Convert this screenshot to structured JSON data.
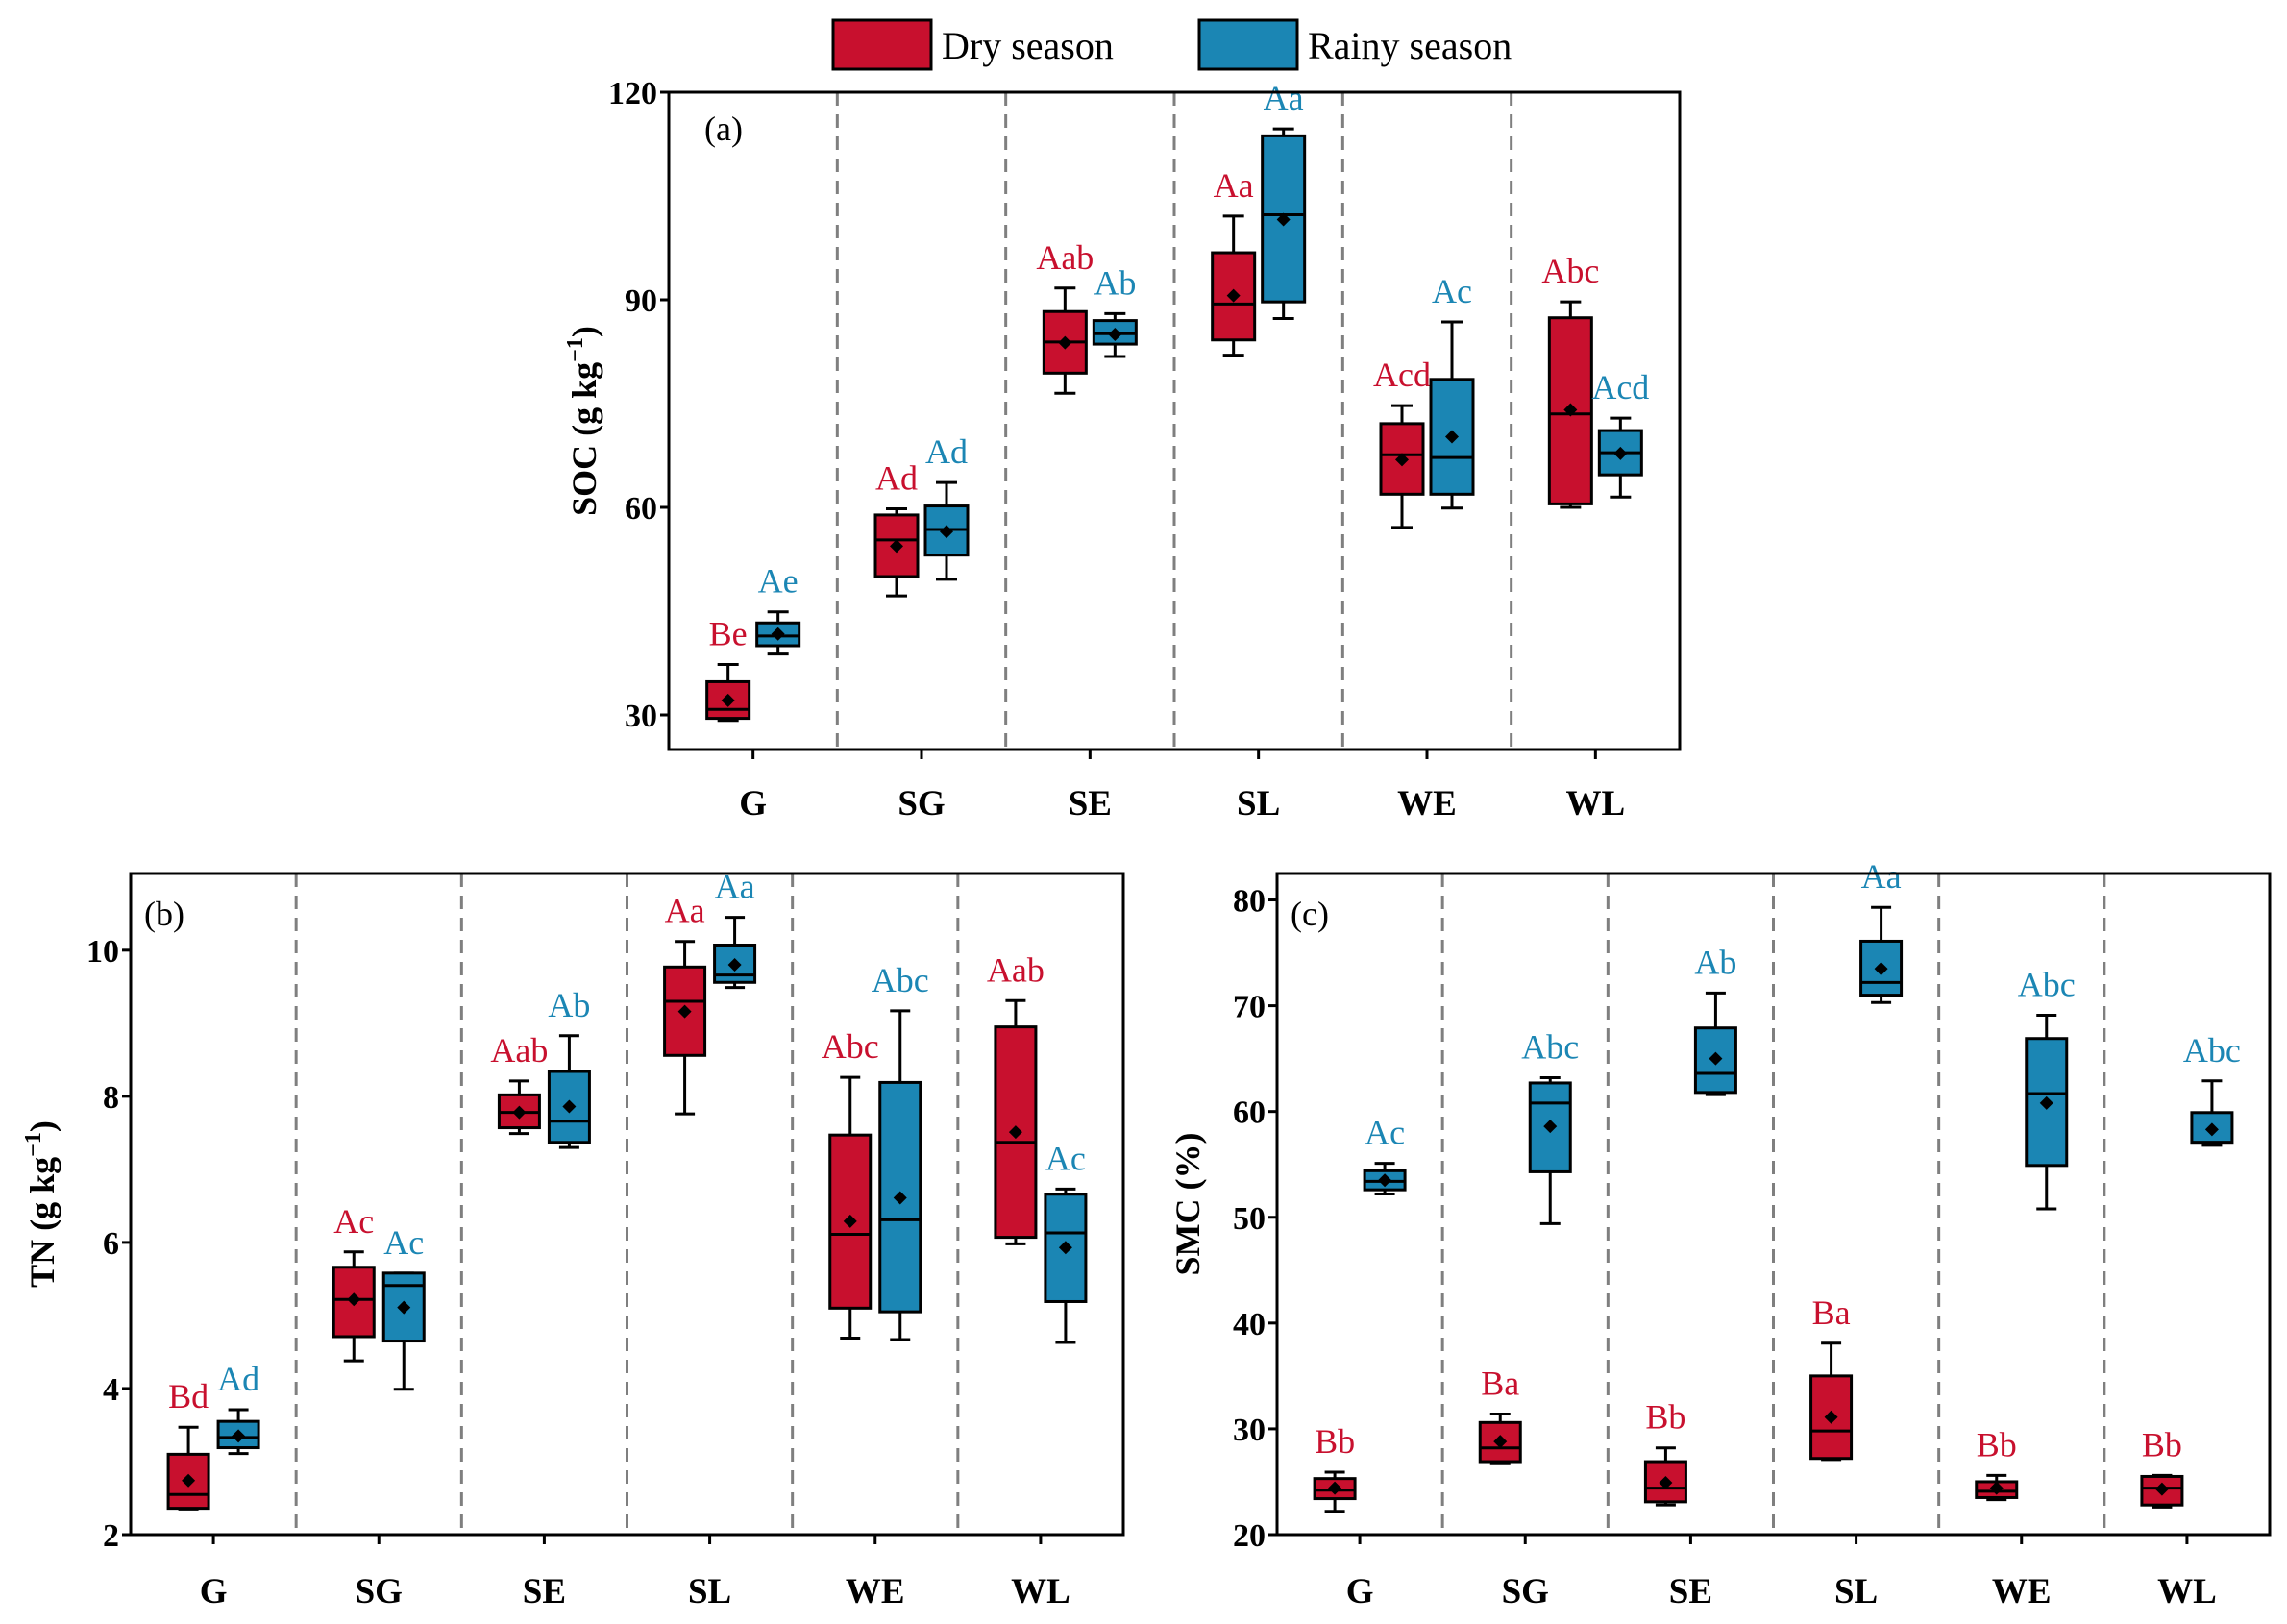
{
  "legend": {
    "dry_label": "Dry season",
    "rainy_label": "Rainy season",
    "dry_color": "#c8102e",
    "rainy_color": "#1b86b4"
  },
  "chart_data": [
    {
      "type": "box",
      "panel": "(a)",
      "ylabel_main": "SOC (g kg",
      "ylabel_sup": "−1",
      "ylabel_close": ")",
      "ylim": [
        25,
        120
      ],
      "yticks": [
        30,
        60,
        90,
        120
      ],
      "categories": [
        "G",
        "SG",
        "SE",
        "SL",
        "WE",
        "WL"
      ],
      "series": [
        {
          "name": "Dry season",
          "boxes": [
            {
              "min": 29.2,
              "q1": 29.5,
              "median": 30.8,
              "q3": 34.8,
              "max": 37.3,
              "mean": 32.1,
              "label": "Be"
            },
            {
              "min": 47.2,
              "q1": 50.0,
              "median": 55.3,
              "q3": 58.9,
              "max": 59.8,
              "mean": 54.4,
              "label": "Ad"
            },
            {
              "min": 76.5,
              "q1": 79.4,
              "median": 83.9,
              "q3": 88.3,
              "max": 91.7,
              "mean": 83.8,
              "label": "Aab"
            },
            {
              "min": 82.0,
              "q1": 84.2,
              "median": 89.4,
              "q3": 96.8,
              "max": 102.1,
              "mean": 90.6,
              "label": "Aa"
            },
            {
              "min": 57.1,
              "q1": 61.9,
              "median": 67.6,
              "q3": 72.1,
              "max": 74.7,
              "mean": 66.9,
              "label": "Acd"
            },
            {
              "min": 60.0,
              "q1": 60.5,
              "median": 73.5,
              "q3": 87.4,
              "max": 89.7,
              "mean": 74.1,
              "label": "Abc"
            }
          ]
        },
        {
          "name": "Rainy season",
          "boxes": [
            {
              "min": 38.8,
              "q1": 40.0,
              "median": 41.4,
              "q3": 43.3,
              "max": 44.9,
              "mean": 41.7,
              "label": "Ae"
            },
            {
              "min": 49.6,
              "q1": 53.1,
              "median": 56.8,
              "q3": 60.2,
              "max": 63.6,
              "mean": 56.5,
              "label": "Ad"
            },
            {
              "min": 81.8,
              "q1": 83.6,
              "median": 85.1,
              "q3": 87.0,
              "max": 88.0,
              "mean": 85.0,
              "label": "Ab"
            },
            {
              "min": 87.3,
              "q1": 89.7,
              "median": 102.3,
              "q3": 113.7,
              "max": 114.7,
              "mean": 101.6,
              "label": "Aa"
            },
            {
              "min": 59.9,
              "q1": 61.9,
              "median": 67.2,
              "q3": 78.5,
              "max": 86.8,
              "mean": 70.2,
              "label": "Ac"
            },
            {
              "min": 61.5,
              "q1": 64.7,
              "median": 67.9,
              "q3": 71.1,
              "max": 72.9,
              "mean": 67.8,
              "label": "Acd"
            }
          ]
        }
      ]
    },
    {
      "type": "box",
      "panel": "(b)",
      "ylabel_main": "TN (g kg",
      "ylabel_sup": "−1",
      "ylabel_close": ")",
      "ylim": [
        2,
        11.05
      ],
      "yticks": [
        2,
        4,
        6,
        8,
        10
      ],
      "categories": [
        "G",
        "SG",
        "SE",
        "SL",
        "WE",
        "WL"
      ],
      "series": [
        {
          "name": "Dry season",
          "boxes": [
            {
              "min": 2.35,
              "q1": 2.36,
              "median": 2.55,
              "q3": 3.1,
              "max": 3.47,
              "mean": 2.74,
              "label": "Bd"
            },
            {
              "min": 4.38,
              "q1": 4.71,
              "median": 5.22,
              "q3": 5.66,
              "max": 5.87,
              "mean": 5.22,
              "label": "Ac"
            },
            {
              "min": 7.49,
              "q1": 7.57,
              "median": 7.78,
              "q3": 8.02,
              "max": 8.21,
              "mean": 7.78,
              "label": "Aab"
            },
            {
              "min": 7.76,
              "q1": 8.56,
              "median": 9.3,
              "q3": 9.77,
              "max": 10.12,
              "mean": 9.16,
              "label": "Aa"
            },
            {
              "min": 4.69,
              "q1": 5.1,
              "median": 6.11,
              "q3": 7.47,
              "max": 8.26,
              "mean": 6.29,
              "label": "Abc"
            },
            {
              "min": 5.98,
              "q1": 6.07,
              "median": 7.37,
              "q3": 8.95,
              "max": 9.31,
              "mean": 7.51,
              "label": "Aab"
            }
          ]
        },
        {
          "name": "Rainy season",
          "boxes": [
            {
              "min": 3.11,
              "q1": 3.19,
              "median": 3.33,
              "q3": 3.55,
              "max": 3.71,
              "mean": 3.35,
              "label": "Ad"
            },
            {
              "min": 3.99,
              "q1": 4.65,
              "median": 5.41,
              "q3": 5.58,
              "max": 5.58,
              "mean": 5.11,
              "label": "Ac"
            },
            {
              "min": 7.3,
              "q1": 7.37,
              "median": 7.66,
              "q3": 8.34,
              "max": 8.83,
              "mean": 7.86,
              "label": "Ab"
            },
            {
              "min": 9.49,
              "q1": 9.56,
              "median": 9.66,
              "q3": 10.07,
              "max": 10.45,
              "mean": 9.8,
              "label": "Aa"
            },
            {
              "min": 4.67,
              "q1": 5.05,
              "median": 6.31,
              "q3": 8.19,
              "max": 9.17,
              "mean": 6.61,
              "label": "Abc"
            },
            {
              "min": 4.63,
              "q1": 5.19,
              "median": 6.13,
              "q3": 6.66,
              "max": 6.73,
              "mean": 5.93,
              "label": "Ac"
            }
          ]
        }
      ]
    },
    {
      "type": "box",
      "panel": "(c)",
      "ylabel_main": "SMC (%)",
      "ylabel_sup": "",
      "ylabel_close": "",
      "ylim": [
        20,
        82.5
      ],
      "yticks": [
        20,
        30,
        40,
        50,
        60,
        70,
        80
      ],
      "categories": [
        "G",
        "SG",
        "SE",
        "SL",
        "WE",
        "WL"
      ],
      "series": [
        {
          "name": "Dry season",
          "boxes": [
            {
              "min": 22.2,
              "q1": 23.4,
              "median": 24.2,
              "q3": 25.3,
              "max": 25.9,
              "mean": 24.4,
              "label": "Bb"
            },
            {
              "min": 26.7,
              "q1": 26.9,
              "median": 28.2,
              "q3": 30.6,
              "max": 31.4,
              "mean": 28.8,
              "label": "Ba"
            },
            {
              "min": 22.8,
              "q1": 23.1,
              "median": 24.4,
              "q3": 26.9,
              "max": 28.2,
              "mean": 24.9,
              "label": "Bb"
            },
            {
              "min": 27.1,
              "q1": 27.2,
              "median": 29.8,
              "q3": 35.0,
              "max": 38.1,
              "mean": 31.1,
              "label": "Ba"
            },
            {
              "min": 23.3,
              "q1": 23.5,
              "median": 24.1,
              "q3": 25.0,
              "max": 25.6,
              "mean": 24.4,
              "label": "Bb"
            },
            {
              "min": 22.6,
              "q1": 22.8,
              "median": 24.4,
              "q3": 25.5,
              "max": 25.6,
              "mean": 24.3,
              "label": "Bb"
            }
          ]
        },
        {
          "name": "Rainy season",
          "boxes": [
            {
              "min": 52.2,
              "q1": 52.6,
              "median": 53.4,
              "q3": 54.4,
              "max": 55.1,
              "mean": 53.5,
              "label": "Ac"
            },
            {
              "min": 49.4,
              "q1": 54.3,
              "median": 60.8,
              "q3": 62.7,
              "max": 63.2,
              "mean": 58.6,
              "label": "Abc"
            },
            {
              "min": 61.6,
              "q1": 61.8,
              "median": 63.6,
              "q3": 67.9,
              "max": 71.2,
              "mean": 65.0,
              "label": "Ab"
            },
            {
              "min": 70.3,
              "q1": 71.0,
              "median": 72.2,
              "q3": 76.1,
              "max": 79.3,
              "mean": 73.5,
              "label": "Aa"
            },
            {
              "min": 50.8,
              "q1": 54.9,
              "median": 61.7,
              "q3": 66.9,
              "max": 69.1,
              "mean": 60.8,
              "label": "Abc"
            },
            {
              "min": 56.8,
              "q1": 57.0,
              "median": 57.1,
              "q3": 59.9,
              "max": 62.9,
              "mean": 58.3,
              "label": "Abc"
            }
          ]
        }
      ]
    }
  ]
}
